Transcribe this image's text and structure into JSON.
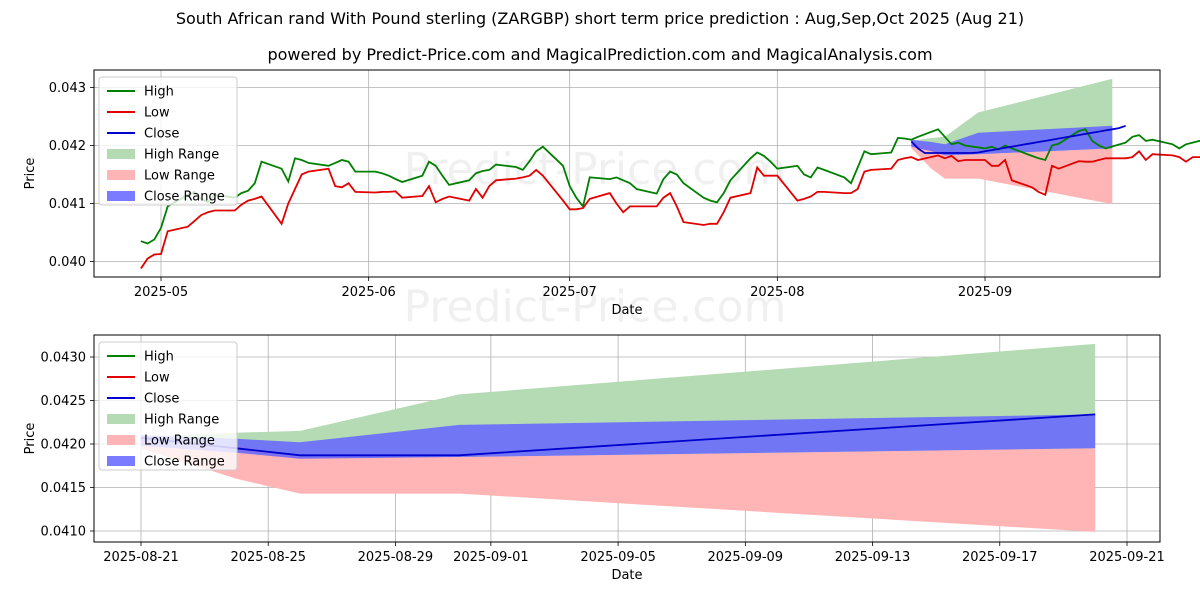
{
  "header": {
    "title": "South African rand With Pound sterling (ZARGBP) short term price prediction : Aug,Sep,Oct 2025 (Aug 21)",
    "subtitle": "powered by Predict-Price.com and MagicalPrediction.com and MagicalAnalysis.com"
  },
  "watermark": "Predict-Price.com",
  "colors": {
    "high": "#008000",
    "low": "#e00000",
    "close": "#0000cc",
    "high_range": "#b5dbb5",
    "low_range": "#ffb5b5",
    "close_range": "#6464ff"
  },
  "chart_data": [
    {
      "type": "line",
      "xlabel": "Date",
      "ylabel": "Price",
      "ylim": [
        0.03975,
        0.04325
      ],
      "grid": true,
      "legend_position": "top-left",
      "x_ticks": [
        "2025-05",
        "2025-06",
        "2025-07",
        "2025-08",
        "2025-09"
      ],
      "y_ticks": [
        "0.040",
        "0.041",
        "0.042",
        "0.043"
      ],
      "legend": [
        "High",
        "Low",
        "Close",
        "High Range",
        "Low Range",
        "Close Range"
      ],
      "history_start": "2025-04-28",
      "series": [
        {
          "name": "High",
          "values": [
            0.04035,
            0.04031,
            0.04038,
            0.04058,
            0.04095,
            0.04115,
            0.0412,
            0.04108,
            0.04102,
            0.04115,
            0.0411,
            0.04118,
            0.04122,
            0.04135,
            0.04172,
            0.0416,
            0.04138,
            0.04178,
            0.04175,
            0.0417,
            0.04165,
            0.0417,
            0.04175,
            0.04172,
            0.04155,
            0.04155,
            0.04152,
            0.04148,
            0.04142,
            0.04137,
            0.04148,
            0.04172,
            0.04165,
            0.04148,
            0.04132,
            0.0414,
            0.04152,
            0.04156,
            0.04158,
            0.04167,
            0.04163,
            0.04158,
            0.04173,
            0.0419,
            0.04198,
            0.04165,
            0.0413,
            0.0411,
            0.04095,
            0.04145,
            0.04142,
            0.04145,
            0.0414,
            0.04135,
            0.04125,
            0.04117,
            0.04142,
            0.04155,
            0.0415,
            0.04135,
            0.0411,
            0.04105,
            0.04102,
            0.04118,
            0.0414,
            0.04178,
            0.04188,
            0.04182,
            0.04172,
            0.0416,
            0.04165,
            0.0415,
            0.04145,
            0.04162,
            0.04158,
            0.04145,
            0.04135,
            0.04162,
            0.0419,
            0.04185,
            0.04188,
            0.04213,
            0.04212,
            0.0421,
            0.04215,
            0.04228,
            0.04215,
            0.04202,
            0.04205,
            0.042,
            0.04195,
            0.04198,
            0.04193,
            0.042,
            0.04195,
            0.04182,
            0.04178,
            0.04175,
            0.042,
            0.04203,
            0.04225,
            0.04228,
            0.04208,
            0.042,
            0.04195,
            0.04205,
            0.04215,
            0.04218,
            0.04208,
            0.0421,
            0.04202,
            0.04195,
            0.04202,
            0.04205,
            0.04208,
            0.0421
          ]
        },
        {
          "name": "Low",
          "values": [
            0.03988,
            0.04005,
            0.04012,
            0.04013,
            0.04052,
            0.0406,
            0.0407,
            0.0408,
            0.04085,
            0.04088,
            0.04088,
            0.04098,
            0.04105,
            0.04108,
            0.04112,
            0.04065,
            0.041,
            0.04125,
            0.0415,
            0.04155,
            0.0416,
            0.0413,
            0.04128,
            0.04135,
            0.0412,
            0.04119,
            0.0412,
            0.0412,
            0.04121,
            0.0411,
            0.04113,
            0.0413,
            0.04102,
            0.04108,
            0.04112,
            0.04105,
            0.04125,
            0.0411,
            0.0413,
            0.0414,
            0.04143,
            0.04145,
            0.04148,
            0.04158,
            0.04148,
            0.04105,
            0.0409,
            0.0409,
            0.04092,
            0.04108,
            0.04118,
            0.041,
            0.04085,
            0.04095,
            0.04095,
            0.04095,
            0.0411,
            0.04118,
            0.04095,
            0.04068,
            0.04063,
            0.04065,
            0.04065,
            0.04085,
            0.0411,
            0.04118,
            0.04162,
            0.04148,
            0.04148,
            0.04148,
            0.04105,
            0.04108,
            0.04112,
            0.0412,
            0.0412,
            0.04118,
            0.04118,
            0.04125,
            0.04155,
            0.04158,
            0.0416,
            0.04175,
            0.04178,
            0.0418,
            0.04175,
            0.04183,
            0.04178,
            0.04182,
            0.04173,
            0.04175,
            0.04175,
            0.04165,
            0.04165,
            0.04175,
            0.0414,
            0.04128,
            0.0412,
            0.04115,
            0.04165,
            0.0416,
            0.04173,
            0.04172,
            0.04172,
            0.04175,
            0.04178,
            0.04178,
            0.0418,
            0.0419,
            0.04175,
            0.04185,
            0.04183,
            0.0418,
            0.04172,
            0.0418,
            0.0418,
            0.04182
          ]
        },
        {
          "name": "Close",
          "x_start": "2025-08-21",
          "values": [
            0.04207,
            0.04195,
            0.04187,
            0.04187,
            0.04187,
            0.04187,
            0.04187,
            0.04187,
            0.04187,
            0.04187,
            0.04188,
            0.0419,
            0.04192,
            0.04194,
            0.04196,
            0.04198,
            0.042,
            0.04202,
            0.04204,
            0.04206,
            0.04208,
            0.0421,
            0.04212,
            0.04214,
            0.04216,
            0.04218,
            0.0422,
            0.04222,
            0.04224,
            0.04226,
            0.04228,
            0.0423,
            0.04234
          ]
        }
      ]
    },
    {
      "type": "area",
      "xlabel": "Date",
      "ylabel": "Price",
      "ylim": [
        0.04093,
        0.04335
      ],
      "grid": true,
      "legend_position": "top-left",
      "x_ticks": [
        "2025-08-21",
        "2025-08-25",
        "2025-08-29",
        "2025-09-01",
        "2025-09-05",
        "2025-09-09",
        "2025-09-13",
        "2025-09-17",
        "2025-09-21"
      ],
      "y_ticks": [
        "0.0410",
        "0.0415",
        "0.0420",
        "0.0425",
        "0.0430"
      ],
      "legend": [
        "High",
        "Low",
        "Close",
        "High Range",
        "Low Range",
        "Close Range"
      ],
      "x": [
        "2025-08-21",
        "2025-08-24",
        "2025-08-26",
        "2025-08-31",
        "2025-09-20"
      ],
      "high_range": {
        "upper": [
          0.04208,
          0.04213,
          0.04215,
          0.04257,
          0.04315
        ],
        "lower": [
          0.04205,
          0.04198,
          0.04185,
          0.04185,
          0.04195
        ]
      },
      "low_range": {
        "upper": [
          0.04205,
          0.04198,
          0.04185,
          0.04185,
          0.04195
        ],
        "lower": [
          0.04195,
          0.0416,
          0.04143,
          0.04143,
          0.04099
        ]
      },
      "close_range": {
        "upper": [
          0.0421,
          0.04206,
          0.04202,
          0.04222,
          0.04234
        ],
        "lower": [
          0.04198,
          0.0419,
          0.04183,
          0.04185,
          0.04195
        ]
      },
      "series": [
        {
          "name": "Close",
          "x": [
            "2025-08-21",
            "2025-08-24",
            "2025-08-26",
            "2025-08-31",
            "2025-09-20"
          ],
          "values": [
            0.04207,
            0.04195,
            0.04187,
            0.04187,
            0.04234
          ]
        }
      ]
    }
  ]
}
